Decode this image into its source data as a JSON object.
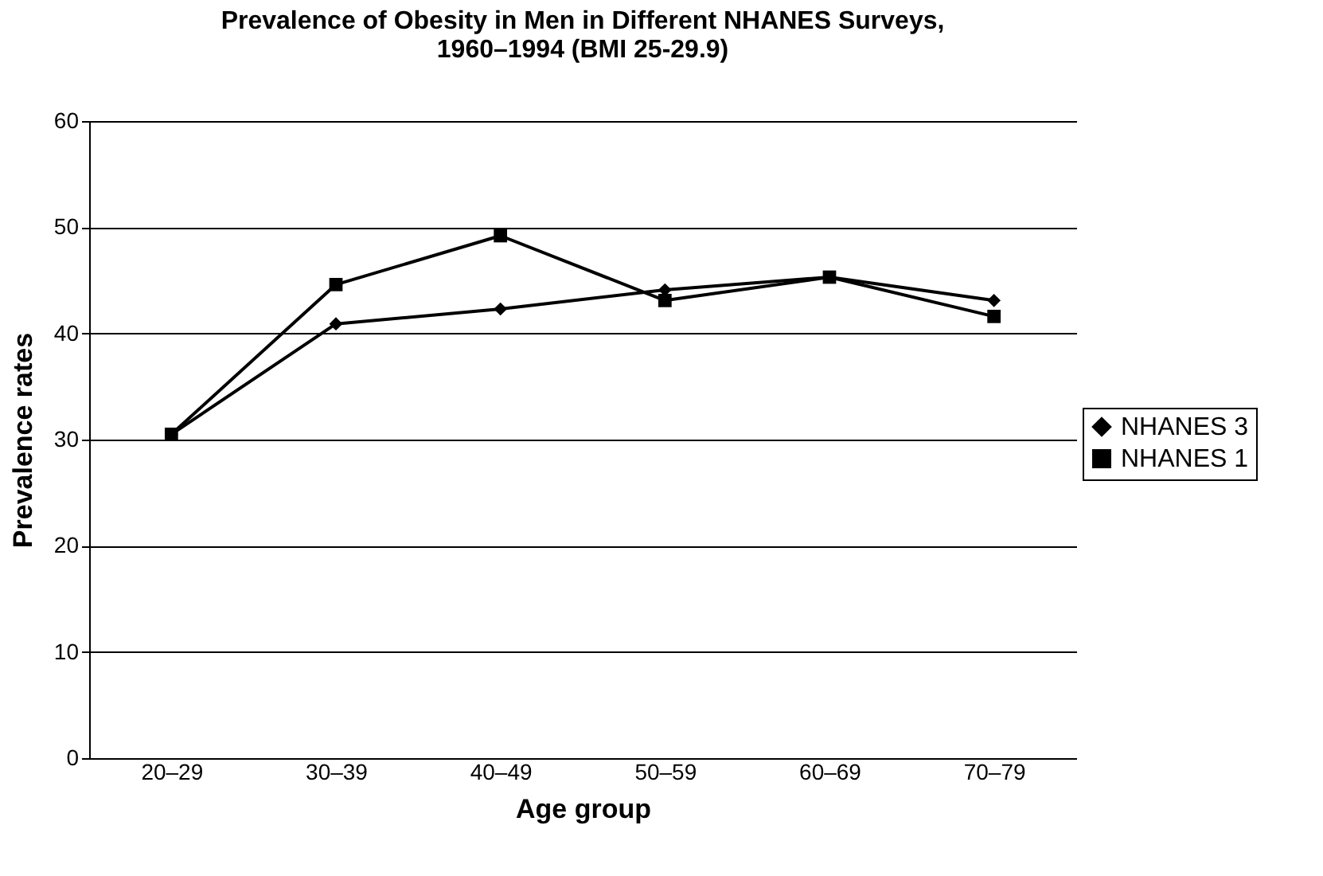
{
  "chart_data": {
    "type": "line",
    "title": [
      "Prevalence of Obesity in Men in Different NHANES Surveys,",
      "1960–1994 (BMI 25-29.9)"
    ],
    "xlabel": "Age group",
    "ylabel": "Prevalence rates",
    "categories": [
      "20–29",
      "30–39",
      "40–49",
      "50–59",
      "60–69",
      "70–79"
    ],
    "series": [
      {
        "name": "NHANES 3",
        "color": "#000000",
        "marker": "diamond",
        "values": [
          30.5,
          40.9,
          42.3,
          44.1,
          45.3,
          43.1
        ]
      },
      {
        "name": "NHANES 1",
        "color": "#000000",
        "marker": "square",
        "values": [
          30.5,
          44.6,
          49.2,
          43.1,
          45.3,
          41.6
        ]
      }
    ],
    "ylim": [
      0,
      60
    ],
    "yticks": [
      0,
      10,
      20,
      30,
      40,
      50,
      60
    ],
    "grid": "y",
    "legend": "right",
    "line_style": "solid"
  }
}
